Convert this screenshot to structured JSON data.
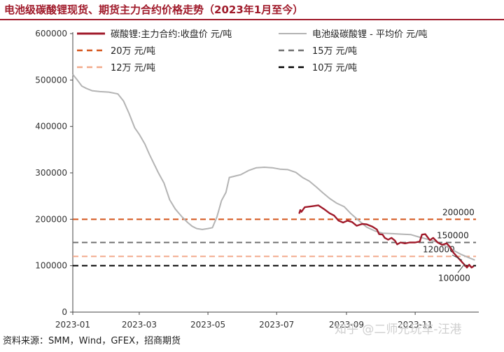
{
  "title": "电池级碳酸锂现货、期货主力合约价格走势（2023年1月至今）",
  "source": "资料来源：SMM，Wind，GFEX，招商期货",
  "watermark": "知乎 @二师兄玩车-汪港",
  "colors": {
    "title": "#a01a2a",
    "futures": "#a01a2a",
    "spot": "#b4b4b4",
    "ref_200k": "#d4541a",
    "ref_150k": "#707070",
    "ref_120k": "#f2a98a",
    "ref_100k": "#000000"
  },
  "chart_data": {
    "type": "line",
    "title": "电池级碳酸锂现货、期货主力合约价格走势（2023年1月至今）",
    "xlabel": "",
    "ylabel": "",
    "ylim": [
      0,
      600000
    ],
    "yticks": [
      0,
      100000,
      200000,
      300000,
      400000,
      500000,
      600000
    ],
    "x_ticks": [
      "2023-01",
      "2023-03",
      "2023-05",
      "2023-07",
      "2023-09",
      "2023-11"
    ],
    "legend_position": "top",
    "grid": false,
    "series": [
      {
        "name": "碳酸锂:主力合约:收盘价 元/吨",
        "style": "solid",
        "color": "#a01a2a",
        "points": [
          [
            "2023-07-21",
            212000
          ],
          [
            "2023-07-22",
            220000
          ],
          [
            "2023-07-23",
            216000
          ],
          [
            "2023-07-26",
            226000
          ],
          [
            "2023-08-01",
            228000
          ],
          [
            "2023-08-07",
            230000
          ],
          [
            "2023-08-12",
            222000
          ],
          [
            "2023-08-17",
            213000
          ],
          [
            "2023-08-21",
            208000
          ],
          [
            "2023-08-25",
            197000
          ],
          [
            "2023-08-29",
            193000
          ],
          [
            "2023-09-02",
            197000
          ],
          [
            "2023-09-06",
            194000
          ],
          [
            "2023-09-10",
            186000
          ],
          [
            "2023-09-15",
            190000
          ],
          [
            "2023-09-19",
            189000
          ],
          [
            "2023-09-24",
            184000
          ],
          [
            "2023-09-28",
            178000
          ],
          [
            "2023-09-30",
            168000
          ],
          [
            "2023-10-03",
            167000
          ],
          [
            "2023-10-05",
            160000
          ],
          [
            "2023-10-08",
            156000
          ],
          [
            "2023-10-11",
            160000
          ],
          [
            "2023-10-14",
            154000
          ],
          [
            "2023-10-16",
            146000
          ],
          [
            "2023-10-19",
            150000
          ],
          [
            "2023-10-23",
            148000
          ],
          [
            "2023-10-27",
            150000
          ],
          [
            "2023-11-01",
            150000
          ],
          [
            "2023-11-05",
            152000
          ],
          [
            "2023-11-07",
            167000
          ],
          [
            "2023-11-10",
            168000
          ],
          [
            "2023-11-14",
            155000
          ],
          [
            "2023-11-17",
            160000
          ],
          [
            "2023-11-21",
            150000
          ],
          [
            "2023-11-25",
            145000
          ],
          [
            "2023-11-29",
            148000
          ],
          [
            "2023-12-02",
            140000
          ],
          [
            "2023-12-05",
            128000
          ],
          [
            "2023-12-08",
            120000
          ],
          [
            "2023-12-11",
            112000
          ],
          [
            "2023-12-14",
            104000
          ],
          [
            "2023-12-17",
            96000
          ],
          [
            "2023-12-19",
            102000
          ],
          [
            "2023-12-21",
            96000
          ],
          [
            "2023-12-23",
            99000
          ]
        ]
      },
      {
        "name": "电池级碳酸锂 - 平均价 元/吨",
        "style": "solid",
        "color": "#b4b4b4",
        "points": [
          [
            "2023-01-01",
            512000
          ],
          [
            "2023-01-05",
            500000
          ],
          [
            "2023-01-09",
            487000
          ],
          [
            "2023-01-13",
            482000
          ],
          [
            "2023-01-18",
            477000
          ],
          [
            "2023-01-25",
            475000
          ],
          [
            "2023-02-02",
            474000
          ],
          [
            "2023-02-10",
            470000
          ],
          [
            "2023-02-15",
            455000
          ],
          [
            "2023-02-20",
            428000
          ],
          [
            "2023-02-25",
            397000
          ],
          [
            "2023-03-01",
            383000
          ],
          [
            "2023-03-06",
            362000
          ],
          [
            "2023-03-10",
            340000
          ],
          [
            "2023-03-14",
            320000
          ],
          [
            "2023-03-18",
            300000
          ],
          [
            "2023-03-23",
            278000
          ],
          [
            "2023-03-28",
            242000
          ],
          [
            "2023-04-02",
            222000
          ],
          [
            "2023-04-08",
            205000
          ],
          [
            "2023-04-13",
            193000
          ],
          [
            "2023-04-17",
            185000
          ],
          [
            "2023-04-21",
            180000
          ],
          [
            "2023-04-26",
            178000
          ],
          [
            "2023-05-01",
            180000
          ],
          [
            "2023-05-05",
            182000
          ],
          [
            "2023-05-09",
            205000
          ],
          [
            "2023-05-13",
            240000
          ],
          [
            "2023-05-17",
            258000
          ],
          [
            "2023-05-20",
            290000
          ],
          [
            "2023-05-25",
            293000
          ],
          [
            "2023-05-30",
            296000
          ],
          [
            "2023-06-06",
            305000
          ],
          [
            "2023-06-13",
            311000
          ],
          [
            "2023-06-20",
            312000
          ],
          [
            "2023-06-27",
            311000
          ],
          [
            "2023-07-04",
            308000
          ],
          [
            "2023-07-11",
            307000
          ],
          [
            "2023-07-18",
            301000
          ],
          [
            "2023-07-24",
            290000
          ],
          [
            "2023-07-30",
            282000
          ],
          [
            "2023-08-05",
            270000
          ],
          [
            "2023-08-11",
            257000
          ],
          [
            "2023-08-17",
            245000
          ],
          [
            "2023-08-23",
            235000
          ],
          [
            "2023-08-30",
            227000
          ],
          [
            "2023-09-05",
            212000
          ],
          [
            "2023-09-12",
            197000
          ],
          [
            "2023-09-19",
            183000
          ],
          [
            "2023-09-26",
            175000
          ],
          [
            "2023-10-03",
            170000
          ],
          [
            "2023-10-12",
            169000
          ],
          [
            "2023-10-20",
            168000
          ],
          [
            "2023-10-28",
            167000
          ],
          [
            "2023-11-04",
            162000
          ],
          [
            "2023-11-12",
            157000
          ],
          [
            "2023-11-20",
            151000
          ],
          [
            "2023-11-28",
            142000
          ],
          [
            "2023-12-05",
            133000
          ],
          [
            "2023-12-12",
            124000
          ],
          [
            "2023-12-19",
            117000
          ],
          [
            "2023-12-24",
            112000
          ]
        ]
      },
      {
        "name": "20万 元/吨",
        "style": "dashed",
        "color": "#d4541a",
        "value": 200000,
        "label": "200000"
      },
      {
        "name": "15万 元/吨",
        "style": "dashed",
        "color": "#707070",
        "value": 150000,
        "label": "150000"
      },
      {
        "name": "12万 元/吨",
        "style": "dashed",
        "color": "#f2a98a",
        "value": 120000,
        "label": "120000"
      },
      {
        "name": "10万 元/吨",
        "style": "dashed",
        "color": "#000000",
        "value": 100000,
        "label": "100000"
      }
    ]
  }
}
